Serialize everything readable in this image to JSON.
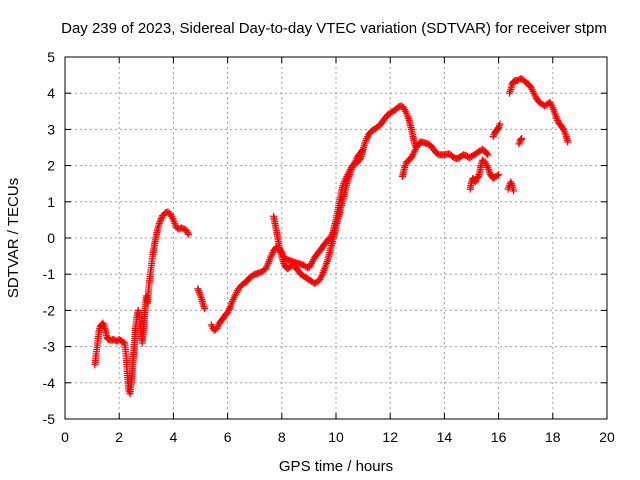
{
  "chart_data": {
    "type": "scatter",
    "title": "Day 239 of 2023, Sidereal Day-to-day VTEC variation (SDTVAR) for receiver stpm",
    "xlabel": "GPS time / hours",
    "ylabel": "SDTVAR / TECUs",
    "xlim": [
      0,
      20
    ],
    "ylim": [
      -5,
      5
    ],
    "x_ticks": [
      0,
      2,
      4,
      6,
      8,
      10,
      12,
      14,
      16,
      18,
      20
    ],
    "y_ticks": [
      -5,
      -4,
      -3,
      -2,
      -1,
      0,
      1,
      2,
      3,
      4,
      5
    ],
    "grid": true,
    "marker": "plus",
    "color": "#ff0000",
    "series": [
      {
        "segments": [
          [
            [
              1.1,
              -3.5
            ],
            [
              1.15,
              -3.2
            ],
            [
              1.2,
              -2.9
            ],
            [
              1.25,
              -2.6
            ],
            [
              1.3,
              -2.45
            ],
            [
              1.35,
              -2.4
            ],
            [
              1.4,
              -2.35
            ],
            [
              1.45,
              -2.45
            ],
            [
              1.5,
              -2.6
            ],
            [
              1.55,
              -2.75
            ],
            [
              1.6,
              -2.8
            ],
            [
              1.7,
              -2.82
            ],
            [
              1.8,
              -2.8
            ],
            [
              1.9,
              -2.85
            ],
            [
              2.0,
              -2.8
            ],
            [
              2.1,
              -2.85
            ],
            [
              2.2,
              -2.9
            ],
            [
              2.25,
              -3.2
            ],
            [
              2.3,
              -3.8
            ],
            [
              2.35,
              -4.2
            ],
            [
              2.4,
              -4.3
            ],
            [
              2.45,
              -4.0
            ],
            [
              2.5,
              -3.5
            ],
            [
              2.55,
              -3.0
            ],
            [
              2.6,
              -2.5
            ],
            [
              2.65,
              -2.2
            ],
            [
              2.7,
              -2.0
            ],
            [
              2.75,
              -2.2
            ],
            [
              2.8,
              -2.6
            ],
            [
              2.85,
              -2.9
            ],
            [
              2.9,
              -2.5
            ],
            [
              2.95,
              -2.0
            ],
            [
              3.0,
              -1.6
            ],
            [
              3.05,
              -1.8
            ],
            [
              3.1,
              -1.3
            ],
            [
              3.15,
              -1.0
            ],
            [
              3.2,
              -0.7
            ],
            [
              3.25,
              -0.4
            ],
            [
              3.3,
              -0.2
            ],
            [
              3.35,
              0.0
            ],
            [
              3.4,
              0.2
            ],
            [
              3.5,
              0.45
            ],
            [
              3.6,
              0.62
            ],
            [
              3.7,
              0.7
            ],
            [
              3.8,
              0.72
            ],
            [
              3.9,
              0.65
            ],
            [
              4.0,
              0.5
            ],
            [
              4.1,
              0.3
            ],
            [
              4.2,
              0.25
            ],
            [
              4.3,
              0.28
            ],
            [
              4.4,
              0.25
            ],
            [
              4.5,
              0.2
            ],
            [
              4.55,
              0.1
            ]
          ],
          [
            [
              4.9,
              -1.4
            ],
            [
              4.95,
              -1.5
            ],
            [
              5.0,
              -1.6
            ],
            [
              5.05,
              -1.7
            ],
            [
              5.1,
              -1.85
            ],
            [
              5.15,
              -1.95
            ]
          ],
          [
            [
              5.4,
              -2.4
            ],
            [
              5.5,
              -2.55
            ],
            [
              5.6,
              -2.5
            ],
            [
              5.7,
              -2.35
            ],
            [
              5.8,
              -2.25
            ],
            [
              5.9,
              -2.15
            ],
            [
              6.0,
              -2.05
            ],
            [
              6.1,
              -1.9
            ],
            [
              6.2,
              -1.7
            ],
            [
              6.3,
              -1.55
            ],
            [
              6.4,
              -1.4
            ],
            [
              6.5,
              -1.32
            ],
            [
              6.6,
              -1.25
            ],
            [
              6.7,
              -1.2
            ],
            [
              6.8,
              -1.1
            ],
            [
              6.9,
              -1.05
            ],
            [
              7.0,
              -1.0
            ],
            [
              7.1,
              -0.98
            ],
            [
              7.2,
              -0.95
            ],
            [
              7.3,
              -0.92
            ],
            [
              7.4,
              -0.85
            ],
            [
              7.5,
              -0.7
            ],
            [
              7.6,
              -0.5
            ],
            [
              7.7,
              -0.35
            ],
            [
              7.8,
              -0.25
            ],
            [
              7.9,
              -0.3
            ],
            [
              8.0,
              -0.4
            ],
            [
              8.1,
              -0.55
            ],
            [
              8.2,
              -0.6
            ],
            [
              8.3,
              -0.62
            ],
            [
              8.4,
              -0.65
            ],
            [
              8.5,
              -0.68
            ],
            [
              8.6,
              -0.7
            ],
            [
              8.7,
              -0.72
            ],
            [
              8.8,
              -0.75
            ],
            [
              8.9,
              -0.8
            ],
            [
              9.0,
              -0.82
            ],
            [
              9.1,
              -0.7
            ],
            [
              9.2,
              -0.55
            ],
            [
              9.3,
              -0.45
            ],
            [
              9.4,
              -0.35
            ],
            [
              9.5,
              -0.25
            ],
            [
              9.6,
              -0.15
            ],
            [
              9.7,
              -0.05
            ],
            [
              9.8,
              0.0
            ],
            [
              9.9,
              0.2
            ],
            [
              10.0,
              0.5
            ],
            [
              10.1,
              0.9
            ],
            [
              10.2,
              1.3
            ],
            [
              10.3,
              1.55
            ],
            [
              10.4,
              1.7
            ],
            [
              10.5,
              1.85
            ],
            [
              10.6,
              2.0
            ],
            [
              10.7,
              2.05
            ],
            [
              10.8,
              2.1
            ],
            [
              10.9,
              2.2
            ],
            [
              11.0,
              2.45
            ],
            [
              11.1,
              2.7
            ],
            [
              11.2,
              2.85
            ],
            [
              11.3,
              2.95
            ],
            [
              11.4,
              3.0
            ],
            [
              11.5,
              3.05
            ],
            [
              11.6,
              3.1
            ],
            [
              11.7,
              3.2
            ],
            [
              11.8,
              3.3
            ],
            [
              11.9,
              3.4
            ],
            [
              12.0,
              3.45
            ],
            [
              12.1,
              3.5
            ],
            [
              12.2,
              3.55
            ],
            [
              12.3,
              3.62
            ],
            [
              12.4,
              3.65
            ],
            [
              12.5,
              3.6
            ],
            [
              12.6,
              3.45
            ],
            [
              12.7,
              3.25
            ],
            [
              12.8,
              2.95
            ],
            [
              12.85,
              2.75
            ],
            [
              12.9,
              2.6
            ],
            [
              12.95,
              2.5
            ],
            [
              13.0,
              2.55
            ],
            [
              13.1,
              2.65
            ],
            [
              13.2,
              2.65
            ],
            [
              13.3,
              2.62
            ],
            [
              13.4,
              2.6
            ],
            [
              13.5,
              2.55
            ],
            [
              13.6,
              2.45
            ],
            [
              13.7,
              2.35
            ],
            [
              13.8,
              2.3
            ],
            [
              13.9,
              2.3
            ],
            [
              14.0,
              2.3
            ],
            [
              14.1,
              2.32
            ],
            [
              14.2,
              2.32
            ],
            [
              14.3,
              2.25
            ],
            [
              14.4,
              2.2
            ],
            [
              14.5,
              2.2
            ],
            [
              14.6,
              2.25
            ],
            [
              14.7,
              2.3
            ],
            [
              14.8,
              2.28
            ],
            [
              14.9,
              2.22
            ],
            [
              15.0,
              2.25
            ],
            [
              15.1,
              2.3
            ],
            [
              15.2,
              2.35
            ],
            [
              15.3,
              2.4
            ],
            [
              15.4,
              2.45
            ],
            [
              15.5,
              2.4
            ],
            [
              15.6,
              2.3
            ]
          ],
          [
            [
              7.7,
              0.6
            ],
            [
              7.75,
              0.4
            ],
            [
              7.8,
              0.2
            ],
            [
              7.85,
              0.0
            ],
            [
              7.9,
              -0.2
            ],
            [
              7.95,
              -0.4
            ],
            [
              8.0,
              -0.5
            ],
            [
              8.05,
              -0.65
            ],
            [
              8.1,
              -0.75
            ],
            [
              8.2,
              -0.85
            ],
            [
              8.3,
              -0.8
            ],
            [
              8.4,
              -0.75
            ],
            [
              8.5,
              -0.8
            ],
            [
              8.6,
              -0.9
            ],
            [
              8.7,
              -1.0
            ],
            [
              8.8,
              -1.05
            ],
            [
              8.9,
              -1.1
            ],
            [
              9.0,
              -1.15
            ],
            [
              9.1,
              -1.2
            ],
            [
              9.2,
              -1.25
            ],
            [
              9.3,
              -1.22
            ],
            [
              9.4,
              -1.15
            ],
            [
              9.5,
              -1.0
            ],
            [
              9.6,
              -0.8
            ],
            [
              9.7,
              -0.6
            ],
            [
              9.8,
              -0.3
            ],
            [
              9.9,
              0.0
            ],
            [
              10.0,
              0.3
            ],
            [
              10.1,
              0.6
            ],
            [
              10.2,
              0.9
            ],
            [
              10.3,
              1.2
            ],
            [
              10.4,
              1.5
            ],
            [
              10.5,
              1.75
            ],
            [
              10.6,
              1.95
            ],
            [
              10.7,
              2.1
            ],
            [
              10.8,
              2.25
            ],
            [
              10.9,
              2.35
            ],
            [
              11.0,
              2.45
            ]
          ],
          [
            [
              12.45,
              1.7
            ],
            [
              12.5,
              1.85
            ],
            [
              12.55,
              2.0
            ],
            [
              12.6,
              2.1
            ],
            [
              12.7,
              2.15
            ],
            [
              12.8,
              2.25
            ],
            [
              12.9,
              2.4
            ],
            [
              13.0,
              2.55
            ]
          ],
          [
            [
              14.95,
              1.35
            ],
            [
              15.0,
              1.55
            ],
            [
              15.05,
              1.65
            ],
            [
              15.1,
              1.6
            ],
            [
              15.15,
              1.55
            ],
            [
              15.2,
              1.65
            ],
            [
              15.25,
              1.7
            ],
            [
              15.3,
              1.8
            ],
            [
              15.35,
              2.0
            ],
            [
              15.4,
              2.15
            ],
            [
              15.5,
              2.1
            ],
            [
              15.6,
              1.95
            ],
            [
              15.7,
              1.75
            ],
            [
              15.8,
              1.65
            ],
            [
              15.9,
              1.7
            ],
            [
              16.0,
              1.75
            ]
          ],
          [
            [
              15.8,
              2.8
            ],
            [
              15.85,
              2.9
            ],
            [
              15.9,
              2.95
            ],
            [
              15.95,
              3.0
            ],
            [
              16.0,
              3.05
            ],
            [
              16.05,
              3.15
            ]
          ],
          [
            [
              16.35,
              1.35
            ],
            [
              16.4,
              1.45
            ],
            [
              16.45,
              1.55
            ],
            [
              16.5,
              1.45
            ],
            [
              16.55,
              1.3
            ]
          ],
          [
            [
              16.4,
              4.0
            ],
            [
              16.45,
              4.1
            ],
            [
              16.5,
              4.25
            ],
            [
              16.55,
              4.32
            ],
            [
              16.6,
              4.35
            ],
            [
              16.7,
              4.35
            ],
            [
              16.8,
              4.4
            ],
            [
              16.9,
              4.38
            ],
            [
              17.0,
              4.3
            ],
            [
              17.1,
              4.25
            ],
            [
              17.2,
              4.15
            ],
            [
              17.3,
              4.0
            ],
            [
              17.4,
              3.85
            ],
            [
              17.5,
              3.75
            ],
            [
              17.6,
              3.7
            ],
            [
              17.7,
              3.65
            ],
            [
              17.8,
              3.7
            ],
            [
              17.9,
              3.75
            ],
            [
              18.0,
              3.6
            ],
            [
              18.1,
              3.4
            ],
            [
              18.2,
              3.2
            ],
            [
              18.3,
              3.1
            ],
            [
              18.4,
              3.0
            ],
            [
              18.5,
              2.8
            ],
            [
              18.55,
              2.65
            ]
          ],
          [
            [
              16.75,
              2.6
            ],
            [
              16.8,
              2.7
            ],
            [
              16.85,
              2.75
            ]
          ]
        ]
      }
    ]
  }
}
